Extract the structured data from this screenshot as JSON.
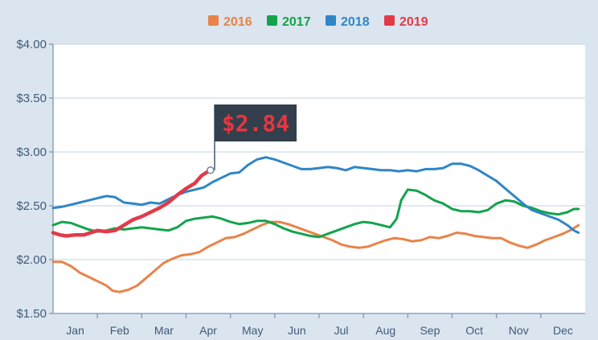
{
  "colors": {
    "background": "#dbe5ef",
    "plot_background": "#ffffff",
    "grid": "#c5d3e0",
    "axis": "#8aa3bb",
    "tick_text": "#3e5a78",
    "flag_bg": "#333f4c",
    "flag_text": "#e8353f",
    "flag_pole": "#6f8499"
  },
  "chart_data": {
    "type": "line",
    "title": "",
    "xlabel": "",
    "ylabel": "",
    "ylim": [
      1.5,
      4.0
    ],
    "yticks": [
      "$1.50",
      "$2.00",
      "$2.50",
      "$3.00",
      "$3.50",
      "$4.00"
    ],
    "ytick_values": [
      1.5,
      2.0,
      2.5,
      3.0,
      3.5,
      4.0
    ],
    "categories": [
      "Jan",
      "Feb",
      "Mar",
      "Apr",
      "May",
      "Jun",
      "Jul",
      "Aug",
      "Sep",
      "Oct",
      "Nov",
      "Dec"
    ],
    "xlim": [
      0,
      12
    ],
    "grid": true,
    "legend_position": "top-center",
    "annotation": {
      "text": "$2.84",
      "series": "2019",
      "x": 3.55,
      "y": 2.83
    },
    "series": [
      {
        "name": "2016",
        "color": "#e8834a",
        "points": [
          [
            0.0,
            1.98
          ],
          [
            0.2,
            1.98
          ],
          [
            0.4,
            1.94
          ],
          [
            0.6,
            1.88
          ],
          [
            0.8,
            1.84
          ],
          [
            1.0,
            1.8
          ],
          [
            1.2,
            1.76
          ],
          [
            1.35,
            1.71
          ],
          [
            1.5,
            1.7
          ],
          [
            1.7,
            1.72
          ],
          [
            1.9,
            1.76
          ],
          [
            2.1,
            1.83
          ],
          [
            2.3,
            1.9
          ],
          [
            2.5,
            1.97
          ],
          [
            2.7,
            2.01
          ],
          [
            2.9,
            2.04
          ],
          [
            3.1,
            2.05
          ],
          [
            3.3,
            2.07
          ],
          [
            3.5,
            2.12
          ],
          [
            3.7,
            2.16
          ],
          [
            3.9,
            2.2
          ],
          [
            4.1,
            2.21
          ],
          [
            4.3,
            2.24
          ],
          [
            4.5,
            2.28
          ],
          [
            4.7,
            2.32
          ],
          [
            4.9,
            2.35
          ],
          [
            5.1,
            2.35
          ],
          [
            5.3,
            2.33
          ],
          [
            5.5,
            2.3
          ],
          [
            5.7,
            2.27
          ],
          [
            5.9,
            2.24
          ],
          [
            6.1,
            2.21
          ],
          [
            6.3,
            2.18
          ],
          [
            6.5,
            2.14
          ],
          [
            6.7,
            2.12
          ],
          [
            6.9,
            2.11
          ],
          [
            7.1,
            2.12
          ],
          [
            7.3,
            2.15
          ],
          [
            7.5,
            2.18
          ],
          [
            7.7,
            2.2
          ],
          [
            7.9,
            2.19
          ],
          [
            8.1,
            2.17
          ],
          [
            8.3,
            2.18
          ],
          [
            8.5,
            2.21
          ],
          [
            8.7,
            2.2
          ],
          [
            8.9,
            2.22
          ],
          [
            9.1,
            2.25
          ],
          [
            9.3,
            2.24
          ],
          [
            9.5,
            2.22
          ],
          [
            9.7,
            2.21
          ],
          [
            9.9,
            2.2
          ],
          [
            10.1,
            2.2
          ],
          [
            10.3,
            2.16
          ],
          [
            10.5,
            2.13
          ],
          [
            10.7,
            2.11
          ],
          [
            10.9,
            2.14
          ],
          [
            11.1,
            2.18
          ],
          [
            11.3,
            2.21
          ],
          [
            11.5,
            2.24
          ],
          [
            11.7,
            2.28
          ],
          [
            11.85,
            2.32
          ]
        ]
      },
      {
        "name": "2017",
        "color": "#13a34b",
        "points": [
          [
            0.0,
            2.32
          ],
          [
            0.2,
            2.35
          ],
          [
            0.4,
            2.34
          ],
          [
            0.6,
            2.31
          ],
          [
            0.8,
            2.28
          ],
          [
            1.0,
            2.26
          ],
          [
            1.2,
            2.27
          ],
          [
            1.4,
            2.29
          ],
          [
            1.6,
            2.28
          ],
          [
            1.8,
            2.29
          ],
          [
            2.0,
            2.3
          ],
          [
            2.2,
            2.29
          ],
          [
            2.4,
            2.28
          ],
          [
            2.6,
            2.27
          ],
          [
            2.8,
            2.3
          ],
          [
            3.0,
            2.36
          ],
          [
            3.2,
            2.38
          ],
          [
            3.4,
            2.39
          ],
          [
            3.6,
            2.4
          ],
          [
            3.8,
            2.38
          ],
          [
            4.0,
            2.35
          ],
          [
            4.2,
            2.33
          ],
          [
            4.4,
            2.34
          ],
          [
            4.6,
            2.36
          ],
          [
            4.8,
            2.36
          ],
          [
            5.0,
            2.33
          ],
          [
            5.2,
            2.29
          ],
          [
            5.4,
            2.26
          ],
          [
            5.6,
            2.24
          ],
          [
            5.8,
            2.22
          ],
          [
            6.0,
            2.21
          ],
          [
            6.2,
            2.24
          ],
          [
            6.4,
            2.27
          ],
          [
            6.6,
            2.3
          ],
          [
            6.8,
            2.33
          ],
          [
            7.0,
            2.35
          ],
          [
            7.2,
            2.34
          ],
          [
            7.4,
            2.32
          ],
          [
            7.6,
            2.3
          ],
          [
            7.75,
            2.38
          ],
          [
            7.85,
            2.55
          ],
          [
            8.0,
            2.65
          ],
          [
            8.2,
            2.64
          ],
          [
            8.4,
            2.6
          ],
          [
            8.6,
            2.55
          ],
          [
            8.8,
            2.52
          ],
          [
            9.0,
            2.47
          ],
          [
            9.2,
            2.45
          ],
          [
            9.4,
            2.45
          ],
          [
            9.6,
            2.44
          ],
          [
            9.8,
            2.46
          ],
          [
            10.0,
            2.52
          ],
          [
            10.2,
            2.55
          ],
          [
            10.4,
            2.54
          ],
          [
            10.6,
            2.5
          ],
          [
            10.8,
            2.48
          ],
          [
            11.0,
            2.45
          ],
          [
            11.2,
            2.43
          ],
          [
            11.4,
            2.42
          ],
          [
            11.6,
            2.44
          ],
          [
            11.75,
            2.47
          ],
          [
            11.85,
            2.47
          ]
        ]
      },
      {
        "name": "2018",
        "color": "#2f86c6",
        "points": [
          [
            0.0,
            2.48
          ],
          [
            0.2,
            2.49
          ],
          [
            0.4,
            2.51
          ],
          [
            0.6,
            2.53
          ],
          [
            0.8,
            2.55
          ],
          [
            1.0,
            2.57
          ],
          [
            1.2,
            2.59
          ],
          [
            1.4,
            2.58
          ],
          [
            1.6,
            2.53
          ],
          [
            1.8,
            2.52
          ],
          [
            2.0,
            2.51
          ],
          [
            2.2,
            2.53
          ],
          [
            2.4,
            2.52
          ],
          [
            2.6,
            2.56
          ],
          [
            2.8,
            2.6
          ],
          [
            3.0,
            2.63
          ],
          [
            3.2,
            2.65
          ],
          [
            3.4,
            2.67
          ],
          [
            3.6,
            2.72
          ],
          [
            3.8,
            2.76
          ],
          [
            4.0,
            2.8
          ],
          [
            4.2,
            2.81
          ],
          [
            4.4,
            2.88
          ],
          [
            4.6,
            2.93
          ],
          [
            4.8,
            2.95
          ],
          [
            5.0,
            2.93
          ],
          [
            5.2,
            2.9
          ],
          [
            5.4,
            2.87
          ],
          [
            5.6,
            2.84
          ],
          [
            5.8,
            2.84
          ],
          [
            6.0,
            2.85
          ],
          [
            6.2,
            2.86
          ],
          [
            6.4,
            2.85
          ],
          [
            6.6,
            2.83
          ],
          [
            6.8,
            2.86
          ],
          [
            7.0,
            2.85
          ],
          [
            7.2,
            2.84
          ],
          [
            7.4,
            2.83
          ],
          [
            7.6,
            2.83
          ],
          [
            7.8,
            2.82
          ],
          [
            8.0,
            2.83
          ],
          [
            8.2,
            2.82
          ],
          [
            8.4,
            2.84
          ],
          [
            8.6,
            2.84
          ],
          [
            8.8,
            2.85
          ],
          [
            9.0,
            2.89
          ],
          [
            9.2,
            2.89
          ],
          [
            9.4,
            2.87
          ],
          [
            9.6,
            2.83
          ],
          [
            9.8,
            2.78
          ],
          [
            10.0,
            2.73
          ],
          [
            10.2,
            2.66
          ],
          [
            10.4,
            2.59
          ],
          [
            10.6,
            2.52
          ],
          [
            10.8,
            2.46
          ],
          [
            11.0,
            2.43
          ],
          [
            11.2,
            2.4
          ],
          [
            11.4,
            2.37
          ],
          [
            11.6,
            2.32
          ],
          [
            11.75,
            2.27
          ],
          [
            11.85,
            2.25
          ]
        ]
      },
      {
        "name": "2019",
        "color": "#e23a49",
        "points": [
          [
            0.0,
            2.25
          ],
          [
            0.15,
            2.23
          ],
          [
            0.3,
            2.22
          ],
          [
            0.5,
            2.23
          ],
          [
            0.7,
            2.23
          ],
          [
            0.85,
            2.25
          ],
          [
            1.0,
            2.27
          ],
          [
            1.2,
            2.26
          ],
          [
            1.4,
            2.27
          ],
          [
            1.6,
            2.32
          ],
          [
            1.8,
            2.37
          ],
          [
            2.0,
            2.4
          ],
          [
            2.2,
            2.44
          ],
          [
            2.4,
            2.48
          ],
          [
            2.6,
            2.53
          ],
          [
            2.8,
            2.6
          ],
          [
            3.0,
            2.66
          ],
          [
            3.2,
            2.71
          ],
          [
            3.35,
            2.78
          ],
          [
            3.5,
            2.82
          ],
          [
            3.55,
            2.83
          ]
        ]
      }
    ]
  }
}
